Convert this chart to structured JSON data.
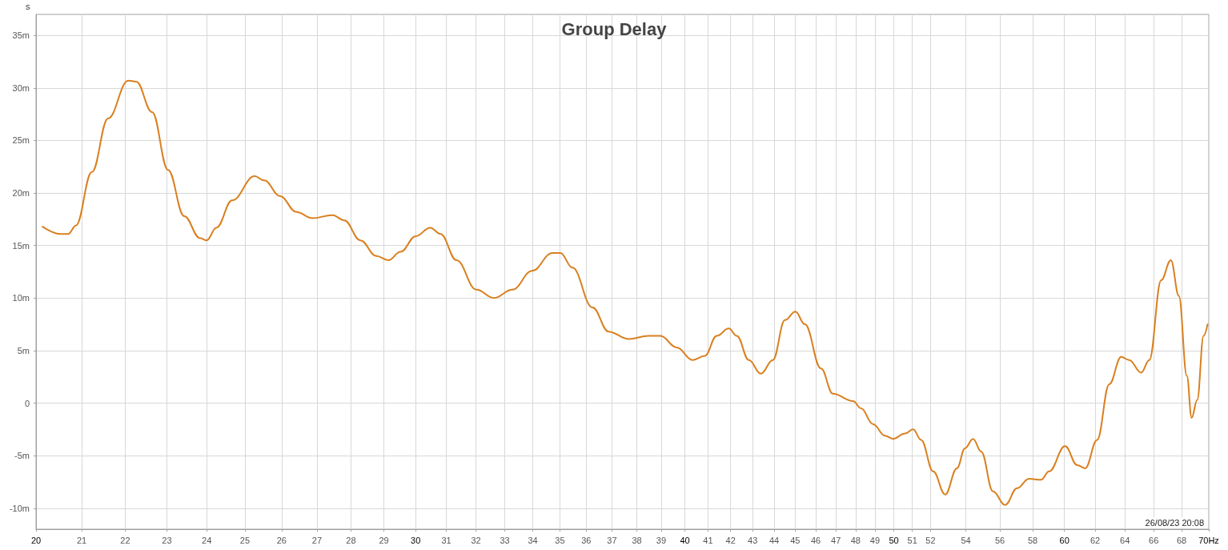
{
  "chart_data": {
    "type": "line",
    "title": "Group Delay",
    "ylabel": "s",
    "annotations": [
      "26/08/23 20:08"
    ],
    "log": "x",
    "grid": true,
    "marker": "none",
    "line_style": "solid",
    "xlim": [
      20,
      70
    ],
    "xticks": [
      20,
      21,
      22,
      23,
      24,
      25,
      26,
      27,
      28,
      29,
      30,
      31,
      32,
      33,
      34,
      35,
      36,
      37,
      38,
      39,
      40,
      41,
      42,
      43,
      44,
      45,
      46,
      47,
      48,
      49,
      50,
      51,
      52,
      54,
      56,
      58,
      60,
      62,
      64,
      66,
      68,
      {
        "value": 70,
        "label": "70Hz"
      }
    ],
    "ylim": [
      -12,
      37
    ],
    "yticks": [
      {
        "value": -10,
        "label": "-10m"
      },
      {
        "value": -5,
        "label": "-5m"
      },
      0,
      {
        "value": 5,
        "label": "5m"
      },
      {
        "value": 10,
        "label": "10m"
      },
      {
        "value": 15,
        "label": "15m"
      },
      {
        "value": 20,
        "label": "20m"
      },
      {
        "value": 25,
        "label": "25m"
      },
      {
        "value": 30,
        "label": "30m"
      },
      {
        "value": 35,
        "label": "35m"
      }
    ],
    "series": [
      {
        "color": "#d98020",
        "x": [
          20.14,
          20.52,
          20.7,
          20.87,
          21.23,
          21.6,
          22.07,
          22.26,
          22.64,
          23.03,
          23.43,
          23.83,
          24.0,
          24.25,
          24.66,
          25.26,
          25.52,
          25.96,
          26.41,
          26.87,
          27.45,
          27.8,
          28.28,
          28.77,
          29.14,
          29.52,
          30.01,
          30.47,
          30.81,
          31.34,
          32.01,
          32.62,
          33.27,
          33.98,
          34.72,
          35.02,
          35.47,
          36.24,
          36.87,
          37.67,
          38.47,
          38.97,
          39.65,
          40.33,
          40.86,
          41.38,
          41.92,
          42.28,
          42.83,
          43.38,
          43.94,
          44.51,
          45.01,
          45.47,
          46.26,
          46.85,
          47.87,
          48.28,
          48.9,
          49.53,
          49.96,
          50.6,
          51.04,
          51.48,
          52.15,
          52.82,
          53.49,
          53.95,
          54.42,
          54.89,
          55.59,
          56.31,
          57.04,
          57.77,
          58.52,
          59.02,
          60.04,
          60.82,
          61.34,
          62.13,
          62.94,
          63.75,
          64.29,
          65.12,
          65.69,
          66.53,
          67.22,
          67.8,
          68.38,
          68.73,
          69.14,
          69.61,
          69.91
        ],
        "values": [
          16.8,
          16.1,
          16.1,
          16.9,
          22.0,
          27.1,
          30.7,
          30.6,
          27.7,
          22.2,
          17.8,
          15.7,
          15.5,
          16.7,
          19.3,
          21.6,
          21.2,
          19.7,
          18.2,
          17.6,
          17.9,
          17.4,
          15.5,
          14.0,
          13.6,
          14.4,
          15.9,
          16.7,
          16.1,
          13.6,
          10.8,
          10.0,
          10.8,
          12.6,
          14.3,
          14.3,
          12.9,
          9.1,
          6.8,
          6.1,
          6.4,
          6.4,
          5.3,
          4.1,
          4.5,
          6.4,
          7.1,
          6.4,
          4.1,
          2.8,
          4.1,
          7.9,
          8.7,
          7.5,
          3.3,
          0.9,
          0.2,
          -0.5,
          -2.0,
          -3.1,
          -3.4,
          -2.9,
          -2.5,
          -3.5,
          -6.5,
          -8.7,
          -6.2,
          -4.3,
          -3.4,
          -4.6,
          -8.4,
          -9.7,
          -8.1,
          -7.2,
          -7.3,
          -6.5,
          -4.1,
          -5.9,
          -6.2,
          -3.5,
          1.8,
          4.4,
          4.1,
          2.9,
          4.1,
          11.7,
          13.6,
          10.2,
          2.6,
          -1.4,
          0.3,
          6.4,
          7.5
        ]
      }
    ]
  }
}
